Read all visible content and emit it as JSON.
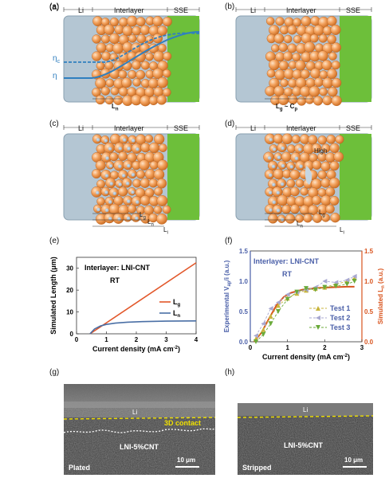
{
  "panels": {
    "a": {
      "label": "(a)",
      "li": "Li",
      "inter": "Interlayer",
      "sse": "SSE",
      "eta_c": "η",
      "eta_c_sub": "c",
      "eta": "η",
      "len": "L",
      "len_sub": "n"
    },
    "b": {
      "label": "(b)",
      "li": "Li",
      "inter": "Interlayer",
      "sse": "SSE",
      "len": "L",
      "len_sub": "g",
      "tilde": " ~ C",
      "tilde_sub": "p"
    },
    "c": {
      "label": "(c)",
      "li": "Li",
      "inter": "Interlayer",
      "sse": "SSE",
      "lg": "L",
      "lg_sub": "g",
      "ln": "L",
      "ln_sub": "n",
      "li_len": "L",
      "li_len_sub": "i"
    },
    "d": {
      "label": "(d)",
      "li": "Li",
      "inter": "Interlayer",
      "sse": "SSE",
      "high": "High",
      "lg": "L",
      "lg_sub": "g",
      "ln": "L",
      "ln_sub": "n",
      "li_len": "L",
      "li_len_sub": "i"
    },
    "e": {
      "label": "(e)",
      "title1": "Interlayer: LNI-CNT",
      "title2": "RT",
      "ylabel": "Simulated Length (μm)",
      "xlabel": "Current density (mA cm",
      "xlabel_sup": "-2",
      "xlabel_end": ")",
      "leg_g": "L",
      "leg_g_sub": "g",
      "leg_n": "L",
      "leg_n_sub": "n"
    },
    "f": {
      "label": "(f)",
      "title1": "Interlayer: LNI-CNT",
      "title2": "RT",
      "ylabel_left": "Experimental V",
      "ylabel_left_sub": "ap",
      "ylabel_left_end": "/i (a.u.)",
      "ylabel_right": "Simulated L",
      "ylabel_right_sub": "n",
      "ylabel_right_end": " (a.u.)",
      "xlabel": "Current density (mA cm",
      "xlabel_sup": "-2",
      "xlabel_end": ")",
      "tests": [
        "Test 1",
        "Test 2",
        "Test 3"
      ]
    },
    "g": {
      "label": "(g)",
      "li": "Li",
      "contact": "3D contact",
      "material": "LNI-5%CNT",
      "mode": "Plated",
      "scale": "10 μm"
    },
    "h": {
      "label": "(h)",
      "li": "Li",
      "material": "LNI-5%CNT",
      "mode": "Stripped",
      "scale": "10 μm"
    }
  },
  "chart_data": [
    {
      "type": "line",
      "title": "Interlayer: LNI-CNT",
      "subtitle": "RT",
      "xlabel": "Current density (mA cm-2)",
      "ylabel": "Simulated Length (μm)",
      "xlim": [
        0,
        4
      ],
      "ylim": [
        0,
        35
      ],
      "xticks": [
        0,
        1,
        2,
        3,
        4
      ],
      "yticks": [
        0,
        10,
        20,
        30
      ],
      "legend": "right",
      "series": [
        {
          "name": "Lg",
          "color": "#e2572a",
          "x": [
            0.45,
            4.0
          ],
          "y": [
            0.0,
            32.5
          ]
        },
        {
          "name": "Ln",
          "color": "#4a6fa5",
          "x": [
            0.45,
            0.6,
            0.8,
            1.0,
            1.3,
            1.7,
            2.2,
            3.0,
            4.0
          ],
          "y": [
            0.0,
            2.2,
            3.6,
            4.3,
            4.9,
            5.3,
            5.6,
            5.8,
            5.9
          ]
        }
      ]
    },
    {
      "type": "scatter",
      "title": "Interlayer: LNI-CNT",
      "subtitle": "RT",
      "xlabel": "Current density (mA cm-2)",
      "ylabel_left": "Experimental Vap/i (a.u.)",
      "ylabel_right": "Simulated Ln (a.u.)",
      "xlim": [
        0,
        3
      ],
      "ylim": [
        0,
        1.5
      ],
      "xticks": [
        0,
        1,
        2,
        3
      ],
      "yticks": [
        0.0,
        0.5,
        1.0,
        1.5
      ],
      "legend": "bottom-right",
      "sim_curve": {
        "color": "#d9541e",
        "x": [
          0.1,
          0.3,
          0.5,
          0.7,
          0.9,
          1.1,
          1.4,
          1.8,
          2.2,
          2.6,
          2.8
        ],
        "y": [
          0.0,
          0.15,
          0.38,
          0.6,
          0.74,
          0.81,
          0.86,
          0.89,
          0.9,
          0.91,
          0.91
        ]
      },
      "series": [
        {
          "name": "Test 1",
          "marker": "triangle-up",
          "color": "#c8b53d",
          "x": [
            0.15,
            0.35,
            0.55,
            0.75,
            1.0,
            1.25,
            1.5,
            1.75,
            2.0,
            2.3,
            2.6,
            2.8
          ],
          "y": [
            0.05,
            0.2,
            0.42,
            0.6,
            0.72,
            0.8,
            0.85,
            0.88,
            0.9,
            0.95,
            1.0,
            1.05
          ]
        },
        {
          "name": "Test 2",
          "marker": "triangle-left",
          "color": "#a8a8d0",
          "x": [
            0.15,
            0.35,
            0.55,
            0.75,
            1.0,
            1.25,
            1.5,
            1.75,
            2.0,
            2.3,
            2.6,
            2.8
          ],
          "y": [
            0.1,
            0.3,
            0.55,
            0.65,
            0.78,
            0.82,
            0.86,
            0.9,
            1.0,
            0.98,
            1.02,
            1.08
          ]
        },
        {
          "name": "Test 3",
          "marker": "triangle-down",
          "color": "#6aaa3a",
          "x": [
            0.15,
            0.35,
            0.55,
            0.75,
            1.0,
            1.25,
            1.5,
            1.75,
            2.0,
            2.3,
            2.6,
            2.8
          ],
          "y": [
            0.0,
            0.12,
            0.3,
            0.5,
            0.7,
            0.82,
            0.88,
            0.86,
            0.9,
            0.92,
            0.95,
            1.0
          ]
        }
      ]
    }
  ]
}
